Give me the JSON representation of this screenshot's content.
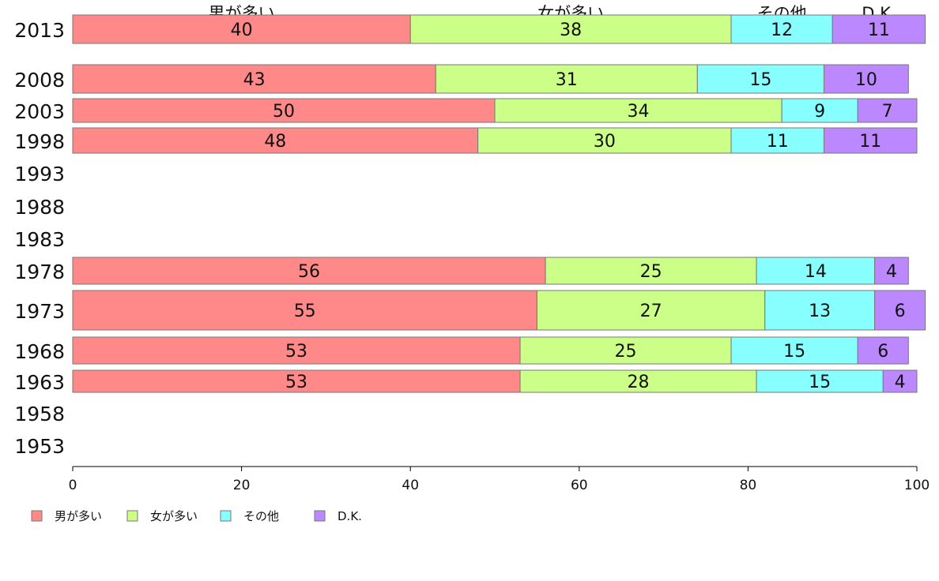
{
  "chart_data": {
    "type": "bar",
    "orientation": "horizontal",
    "stacked": true,
    "categories": [
      "2013",
      "2008",
      "2003",
      "1998",
      "1993",
      "1988",
      "1983",
      "1978",
      "1973",
      "1968",
      "1963",
      "1958",
      "1953"
    ],
    "series": [
      {
        "name": "男が多い",
        "color": "#ff8888",
        "values": [
          40,
          43,
          50,
          48,
          null,
          null,
          null,
          56,
          55,
          53,
          53,
          null,
          null
        ]
      },
      {
        "name": "女が多い",
        "color": "#ccff88",
        "values": [
          38,
          31,
          34,
          30,
          null,
          null,
          null,
          25,
          27,
          25,
          28,
          null,
          null
        ]
      },
      {
        "name": "その他",
        "color": "#88ffff",
        "values": [
          12,
          15,
          9,
          11,
          null,
          null,
          null,
          14,
          13,
          15,
          15,
          null,
          null
        ]
      },
      {
        "name": "D.K.",
        "color": "#bb88ff",
        "values": [
          11,
          10,
          7,
          11,
          null,
          null,
          null,
          4,
          6,
          6,
          4,
          null,
          null
        ]
      }
    ],
    "xlim": [
      0,
      100
    ],
    "xticks": [
      0,
      20,
      40,
      60,
      80,
      100
    ],
    "legend_position": "bottom-left",
    "top_labels": [
      "男が多い",
      "女が多い",
      "その他",
      "D.K."
    ],
    "grid": false
  }
}
